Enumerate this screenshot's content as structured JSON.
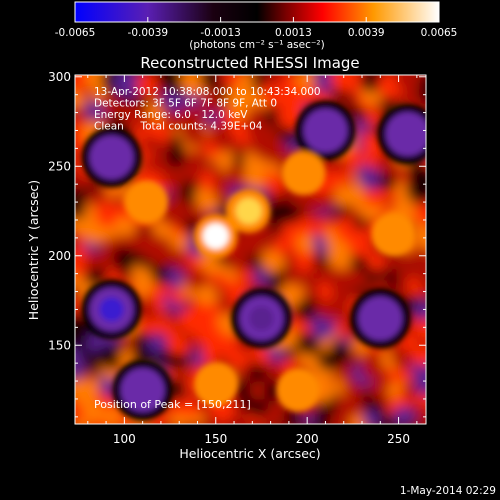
{
  "chart_data": {
    "type": "heatmap",
    "title": "Reconstructed RHESSI Image",
    "xlabel": "Heliocentric X (arcsec)",
    "ylabel": "Heliocentric Y (arcsec)",
    "xlim": [
      73,
      265
    ],
    "ylim": [
      106,
      301
    ],
    "x_ticks": [
      100,
      150,
      200,
      250
    ],
    "y_ticks": [
      150,
      200,
      250,
      300
    ],
    "annotations": [
      "13-Apr-2012 10:38:08.000 to 10:43:34.000",
      "Detectors: 3F 5F 6F 7F 8F 9F, Att 0",
      "Energy Range: 6.0 - 12.0 keV",
      "Clean     Total counts: 4.39E+04"
    ],
    "peak_label": "Position of Peak = [150,211]",
    "peak_position": [
      150,
      211
    ],
    "colorbar": {
      "ticks": [
        "-0.0065",
        "-0.0039",
        "-0.0013",
        "0.0013",
        "0.0039",
        "0.0065"
      ],
      "range": [
        -0.0065,
        0.0065
      ],
      "units": "(photons cm⁻² s⁻¹ asec⁻²)"
    },
    "bright_sources": [
      {
        "x": 150,
        "y": 211,
        "value": 0.0065
      },
      {
        "x": 168,
        "y": 225,
        "value": 0.0045
      },
      {
        "x": 150,
        "y": 128,
        "value": 0.0042
      },
      {
        "x": 198,
        "y": 246,
        "value": 0.0035
      },
      {
        "x": 247,
        "y": 212,
        "value": 0.0032
      },
      {
        "x": 112,
        "y": 230,
        "value": 0.0028
      },
      {
        "x": 195,
        "y": 125,
        "value": 0.003
      }
    ],
    "dark_sources": [
      {
        "x": 93,
        "y": 170,
        "value": -0.0065
      },
      {
        "x": 93,
        "y": 255,
        "value": -0.0045
      },
      {
        "x": 210,
        "y": 270,
        "value": -0.0042
      },
      {
        "x": 255,
        "y": 268,
        "value": -0.004
      },
      {
        "x": 240,
        "y": 165,
        "value": -0.0038
      },
      {
        "x": 175,
        "y": 165,
        "value": -0.003
      },
      {
        "x": 110,
        "y": 125,
        "value": -0.0035
      }
    ],
    "colors": {
      "cmap_low": "#0000ff",
      "cmap_mid": "#000000",
      "cmap_high": "#ffffff",
      "cmap_red": "#ff0000",
      "cmap_orange": "#ff9900",
      "cmap_purple": "#6a2aa8",
      "background": "#000000",
      "foreground": "#ffffff"
    }
  },
  "footer": {
    "timestamp": "1-May-2014 02:29"
  }
}
